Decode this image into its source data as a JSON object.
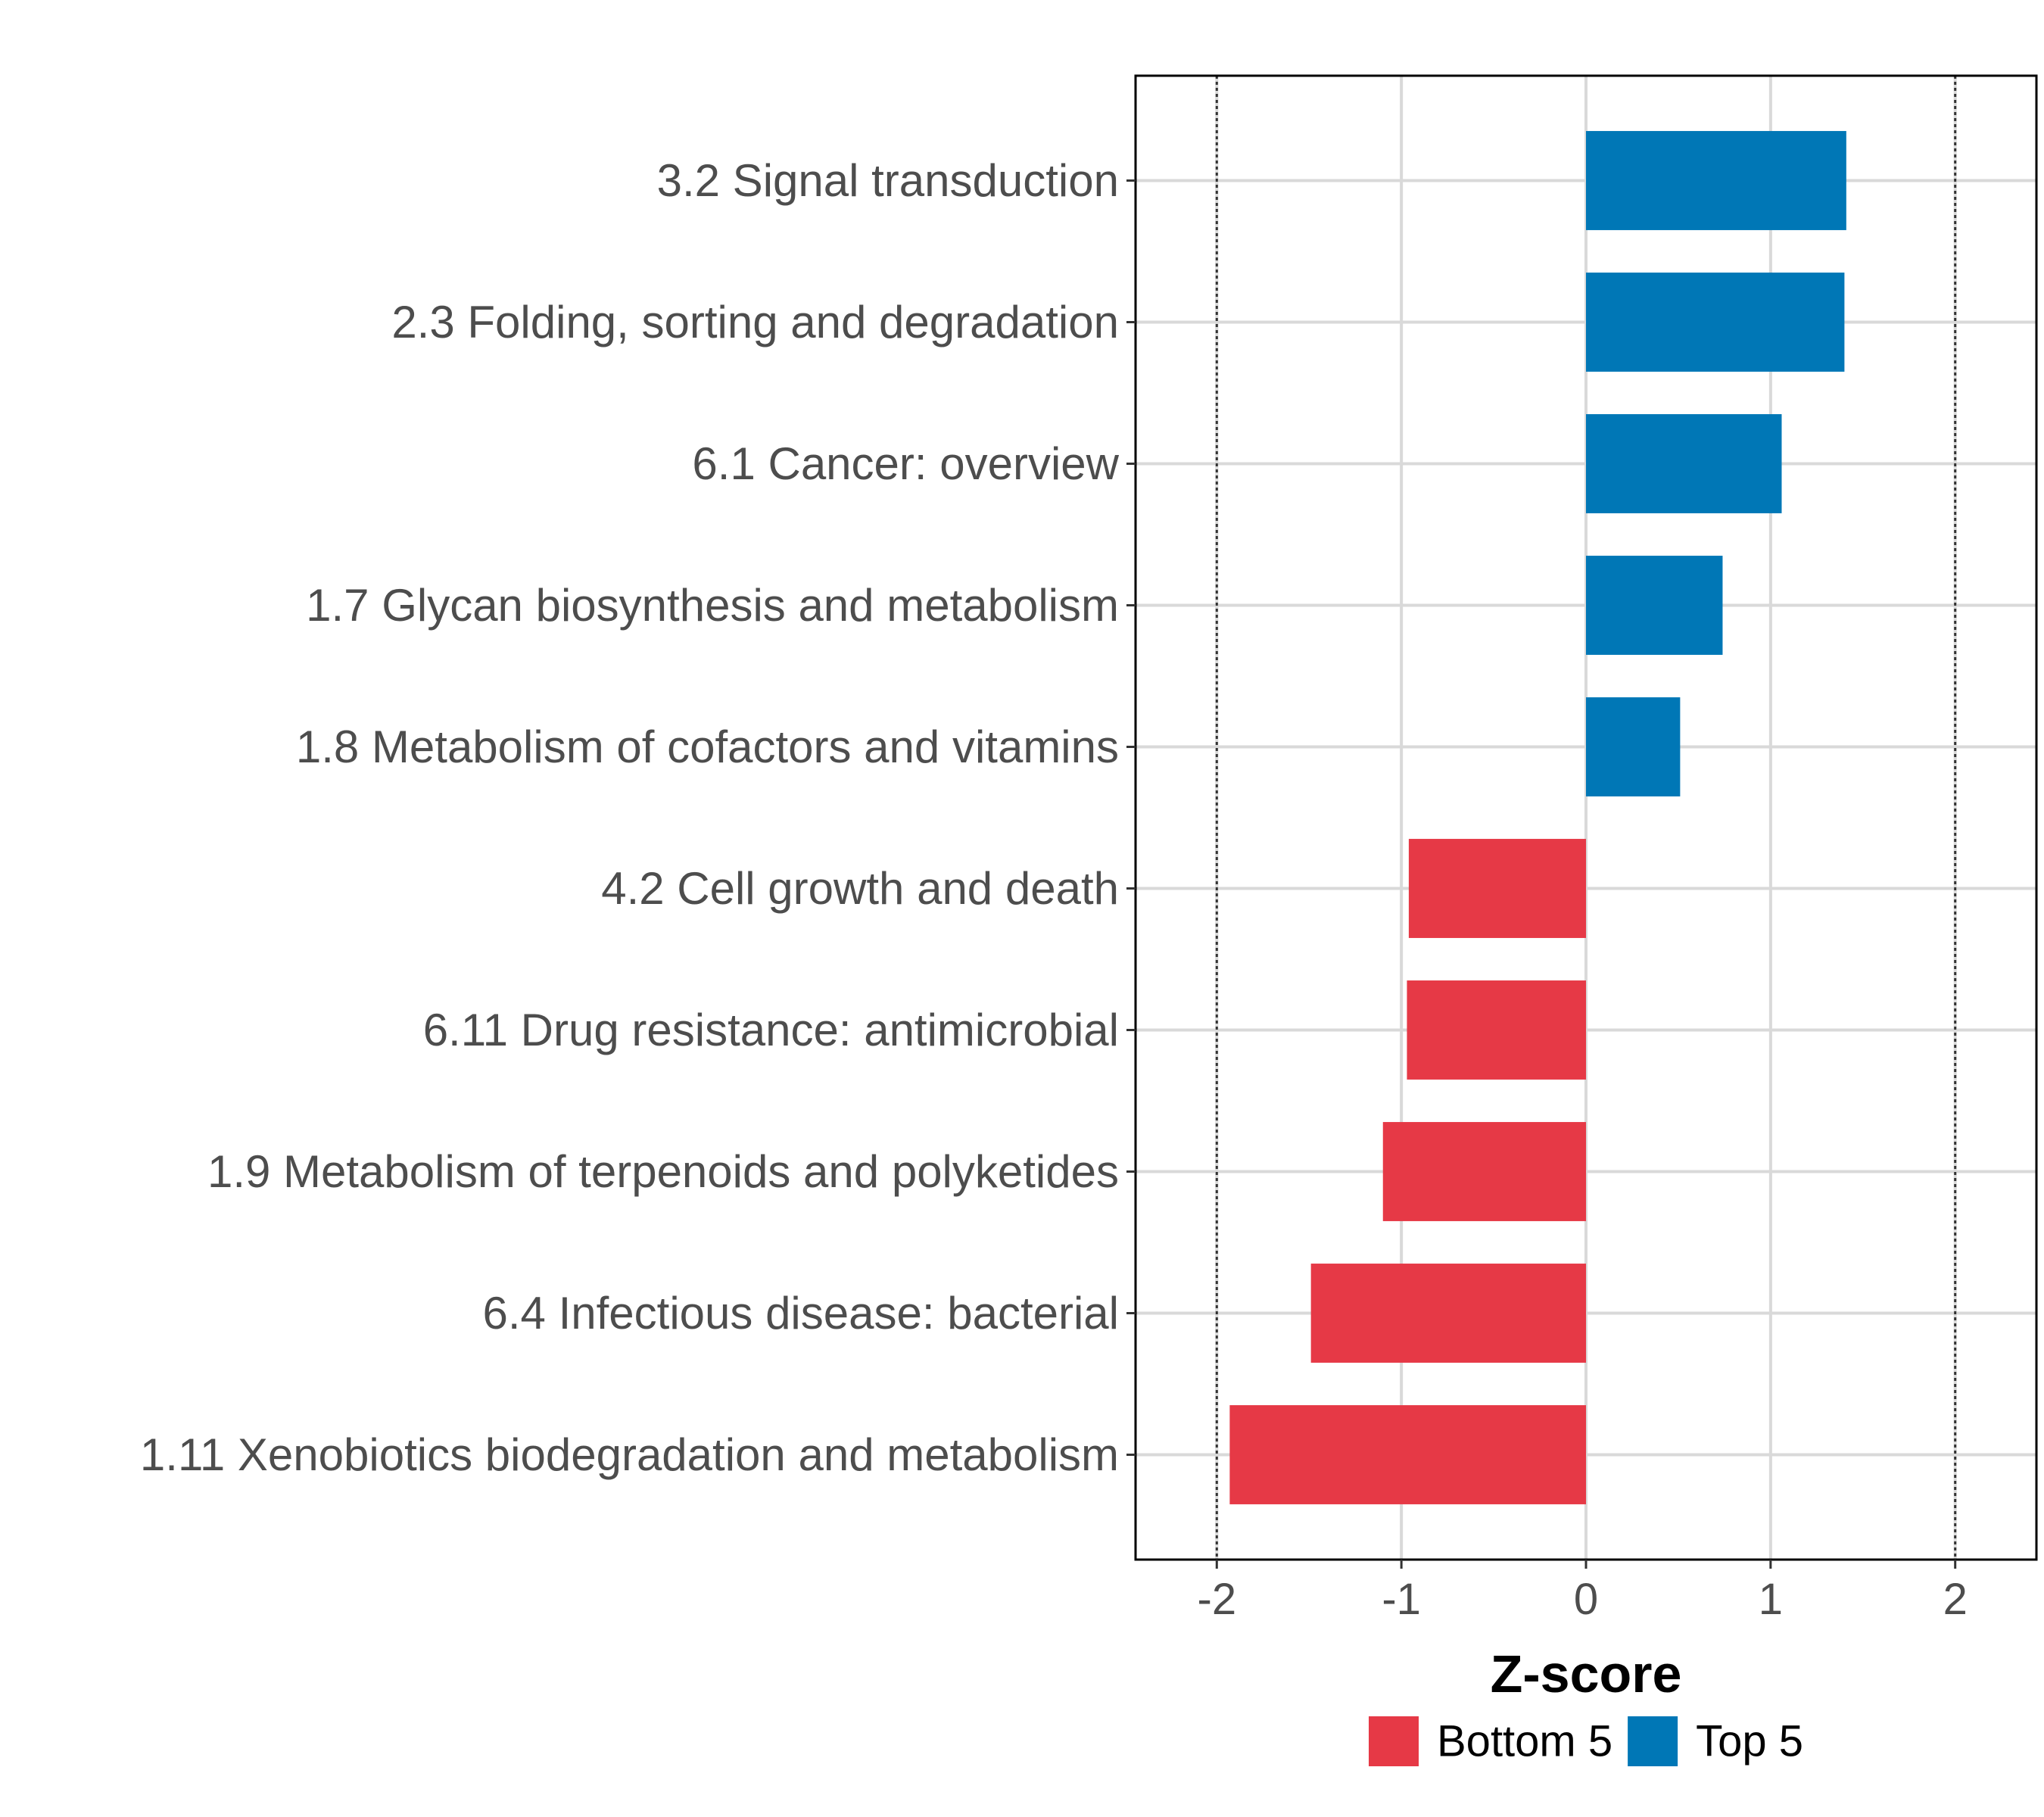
{
  "chart_data": {
    "type": "bar",
    "orientation": "horizontal",
    "title": "",
    "xlabel": "Z-score",
    "ylabel": "",
    "xlim": [
      -2.44,
      2.44
    ],
    "xticks": [
      "-2",
      "-1",
      "0",
      "1",
      "2"
    ],
    "reference_lines": [
      -2,
      2
    ],
    "grid": true,
    "legend_position": "bottom",
    "categories": [
      "3.2 Signal transduction",
      "2.3 Folding, sorting and degradation",
      "6.1 Cancer: overview",
      "1.7 Glycan biosynthesis and metabolism",
      "1.8 Metabolism of cofactors and vitamins",
      "4.2 Cell growth and death",
      "6.11 Drug resistance: antimicrobial",
      "1.9 Metabolism of terpenoids and polyketides",
      "6.4 Infectious disease: bacterial",
      "1.11 Xenobiotics biodegradation and metabolism"
    ],
    "values": [
      1.41,
      1.4,
      1.06,
      0.74,
      0.51,
      -0.96,
      -0.97,
      -1.1,
      -1.49,
      -1.93
    ],
    "groups": [
      "Top 5",
      "Top 5",
      "Top 5",
      "Top 5",
      "Top 5",
      "Bottom 5",
      "Bottom 5",
      "Bottom 5",
      "Bottom 5",
      "Bottom 5"
    ],
    "legend": [
      {
        "name": "Bottom 5",
        "color": "#e63946"
      },
      {
        "name": "Top 5",
        "color": "#0077b6"
      }
    ]
  }
}
